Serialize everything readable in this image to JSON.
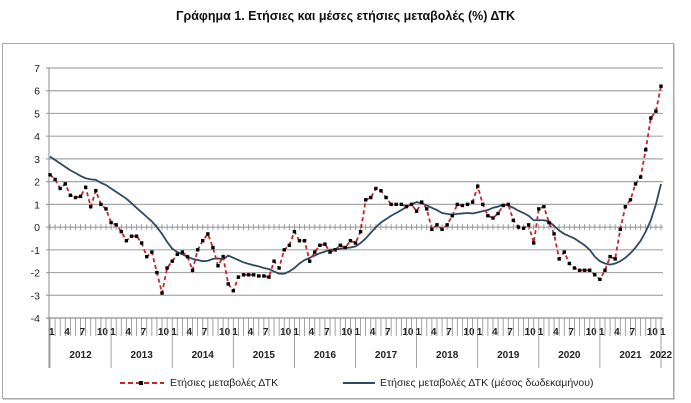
{
  "title": "Γράφημα 1. Ετήσιες και μέσες ετήσιες μεταβολές (%) ΔΤΚ",
  "colors": {
    "annual": "#c0282e",
    "marker": "#000000",
    "average": "#2e4a62",
    "grid": "#a6a6a6",
    "axis": "#8c8c8c"
  },
  "legend": {
    "annual_label": "Ετήσιες μεταβολές ΔΤΚ",
    "average_label": "Ετήσιες μεταβολές ΔΤΚ (μέσος δωδεκαμήνου)"
  },
  "chart_data": {
    "type": "line",
    "title": "Γράφημα 1. Ετήσιες και μέσες ετήσιες μεταβολές (%) ΔΤΚ",
    "xlabel": "",
    "ylabel": "",
    "ylim": [
      -4,
      7
    ],
    "yticks": [
      -4,
      -3,
      -2,
      -1,
      0,
      1,
      2,
      3,
      4,
      5,
      6,
      7
    ],
    "grid": true,
    "legend_position": "bottom",
    "x_month_ticks": [
      "1",
      "4",
      "7",
      "10"
    ],
    "years": [
      "2012",
      "2013",
      "2014",
      "2015",
      "2016",
      "2017",
      "2018",
      "2019",
      "2020",
      "2021",
      "2022"
    ],
    "x_start": "2012-01",
    "x_end": "2022-01",
    "series": [
      {
        "name": "Ετήσιες μεταβολές ΔΤΚ",
        "style": "dashed-with-markers",
        "values": [
          2.3,
          2.1,
          1.7,
          1.9,
          1.4,
          1.3,
          1.35,
          1.75,
          0.9,
          1.6,
          1.0,
          0.8,
          0.2,
          0.1,
          -0.2,
          -0.6,
          -0.4,
          -0.4,
          -0.7,
          -1.3,
          -1.1,
          -2.0,
          -2.9,
          -1.8,
          -1.5,
          -1.2,
          -1.1,
          -1.3,
          -1.9,
          -1.0,
          -0.6,
          -0.3,
          -0.9,
          -1.7,
          -1.3,
          -2.5,
          -2.8,
          -2.2,
          -2.1,
          -2.1,
          -2.1,
          -2.15,
          -2.15,
          -2.2,
          -1.5,
          -1.8,
          -1.0,
          -0.8,
          -0.2,
          -0.6,
          -0.6,
          -1.5,
          -1.1,
          -0.8,
          -0.75,
          -1.1,
          -1.0,
          -0.8,
          -0.9,
          -0.6,
          -0.7,
          -0.2,
          1.2,
          1.3,
          1.7,
          1.6,
          1.3,
          1.0,
          1.0,
          1.0,
          0.9,
          1.0,
          0.7,
          1.1,
          0.8,
          -0.1,
          0.1,
          -0.1,
          0.1,
          0.5,
          1.0,
          0.95,
          1.0,
          1.1,
          1.8,
          1.0,
          0.5,
          0.4,
          0.6,
          0.95,
          1.0,
          0.3,
          0.0,
          -0.05,
          0.1,
          -0.7,
          0.8,
          0.9,
          0.2,
          -0.3,
          -1.4,
          -1.1,
          -1.6,
          -1.8,
          -1.9,
          -1.9,
          -1.9,
          -2.1,
          -2.3,
          -1.9,
          -1.3,
          -1.4,
          -0.1,
          0.9,
          1.2,
          1.9,
          2.2,
          3.4,
          4.8,
          5.1,
          6.2
        ]
      },
      {
        "name": "Ετήσιες μεταβολές ΔΤΚ (μέσος δωδεκαμήνου)",
        "style": "solid",
        "values": [
          3.1,
          2.95,
          2.8,
          2.65,
          2.5,
          2.38,
          2.25,
          2.15,
          2.1,
          2.08,
          1.95,
          1.85,
          1.7,
          1.55,
          1.4,
          1.25,
          1.05,
          0.85,
          0.65,
          0.45,
          0.25,
          0.0,
          -0.3,
          -0.65,
          -0.95,
          -1.1,
          -1.2,
          -1.3,
          -1.4,
          -1.45,
          -1.5,
          -1.48,
          -1.4,
          -1.38,
          -1.42,
          -1.25,
          -1.35,
          -1.45,
          -1.55,
          -1.62,
          -1.68,
          -1.73,
          -1.8,
          -1.85,
          -1.95,
          -2.05,
          -2.05,
          -1.95,
          -1.8,
          -1.6,
          -1.45,
          -1.35,
          -1.25,
          -1.15,
          -1.08,
          -1.0,
          -0.98,
          -0.95,
          -0.92,
          -0.9,
          -0.85,
          -0.7,
          -0.5,
          -0.25,
          0.0,
          0.2,
          0.35,
          0.5,
          0.62,
          0.75,
          0.88,
          1.0,
          1.1,
          1.05,
          0.95,
          0.85,
          0.75,
          0.62,
          0.58,
          0.55,
          0.58,
          0.6,
          0.62,
          0.6,
          0.65,
          0.7,
          0.75,
          0.85,
          0.9,
          1.0,
          0.95,
          0.85,
          0.72,
          0.62,
          0.5,
          0.3,
          0.3,
          0.3,
          0.25,
          0.05,
          -0.15,
          -0.3,
          -0.4,
          -0.5,
          -0.65,
          -0.8,
          -1.0,
          -1.3,
          -1.5,
          -1.6,
          -1.65,
          -1.6,
          -1.5,
          -1.35,
          -1.15,
          -0.9,
          -0.6,
          -0.2,
          0.3,
          1.0,
          1.9
        ]
      }
    ]
  }
}
